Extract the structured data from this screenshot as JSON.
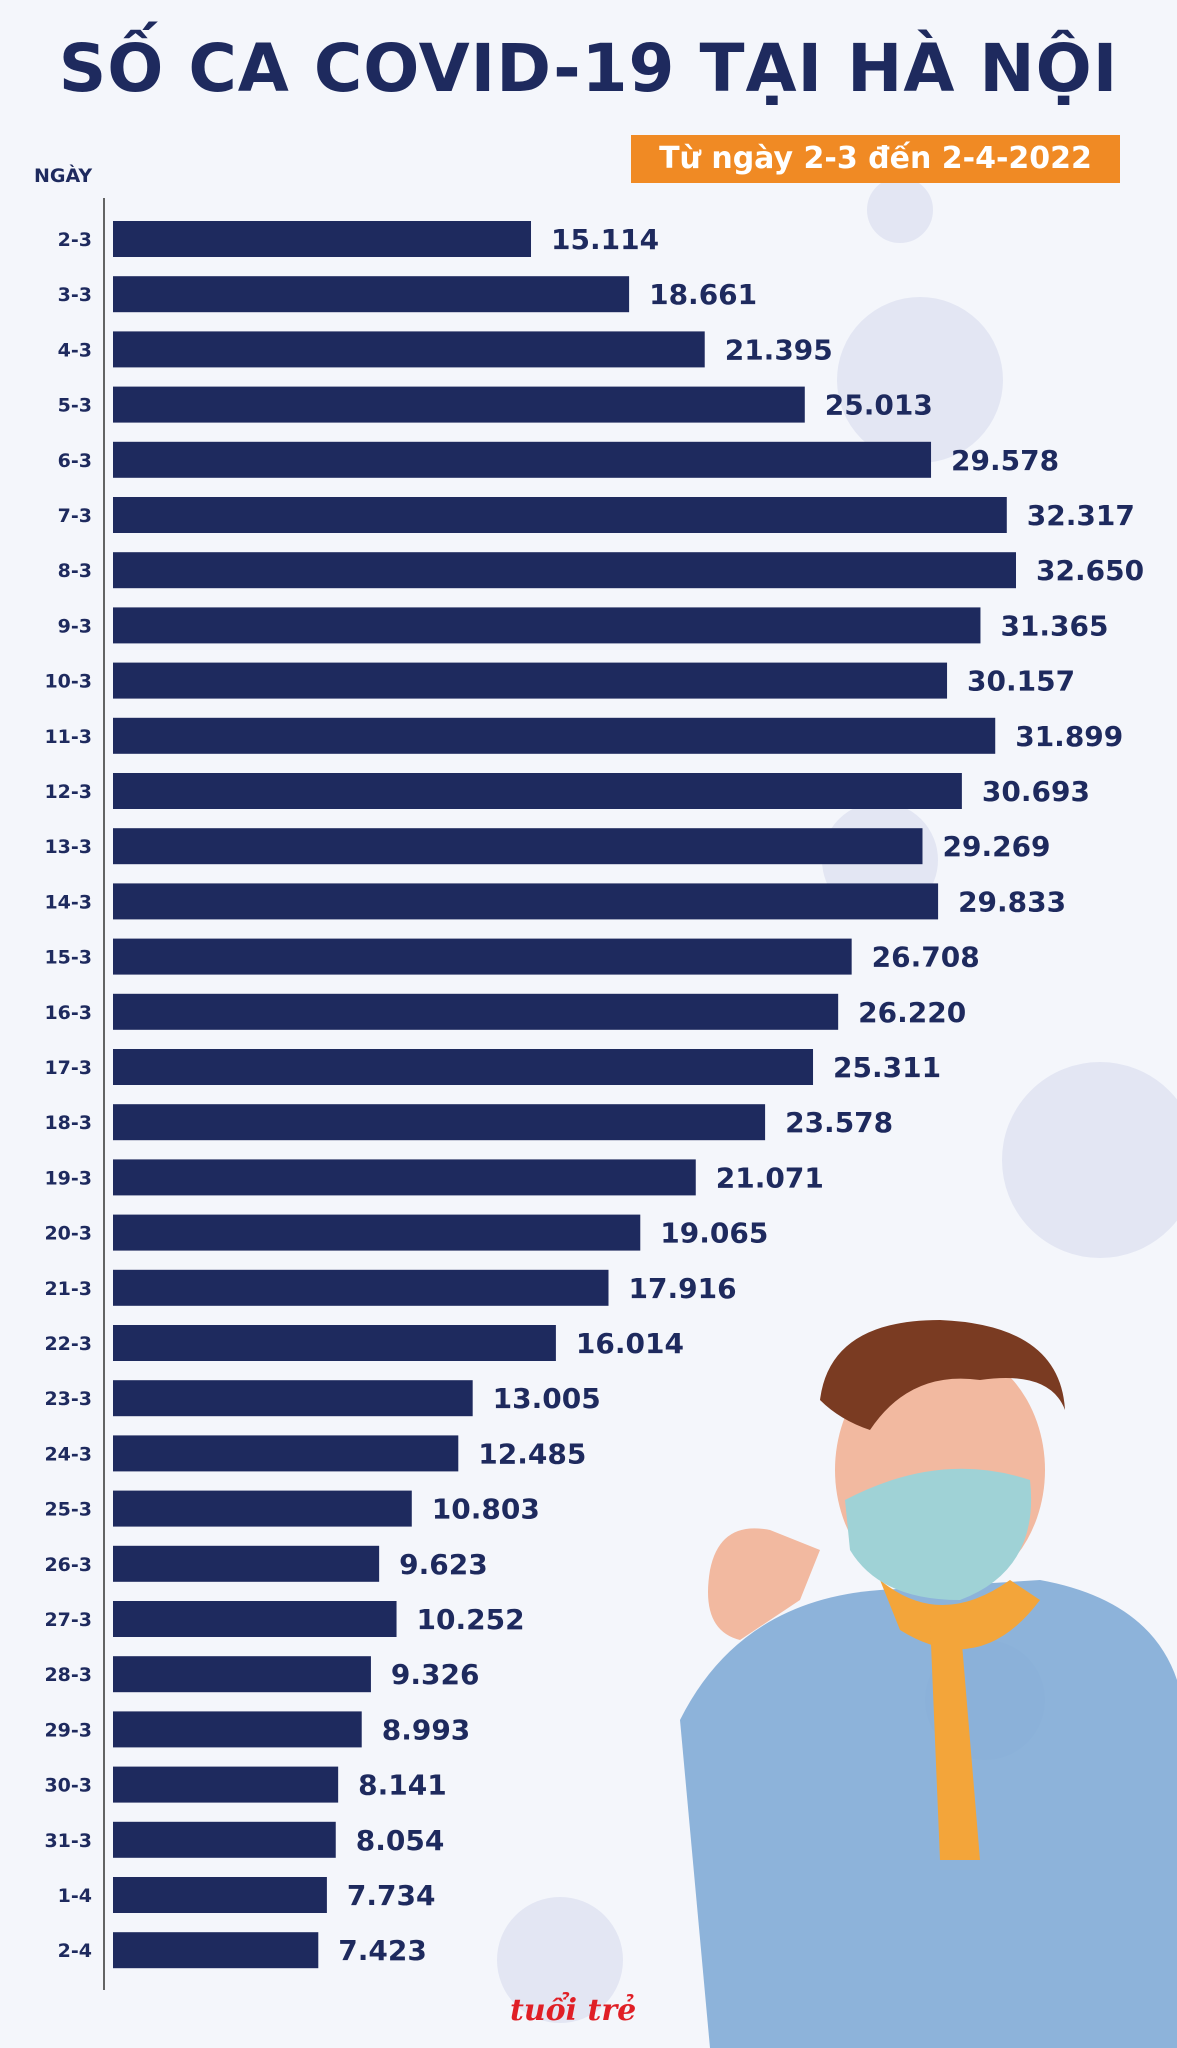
{
  "header": {
    "title": "SỐ CA COVID-19 TẠI HÀ NỘI",
    "subtitle": "Từ ngày 2-3 đến 2-4-2022",
    "axis_label": "NGÀY",
    "logo": "tuổi trẻ"
  },
  "colors": {
    "bar": "#1e2a5e",
    "accent": "#f08a24",
    "logo": "#e01f26"
  },
  "chart_data": {
    "type": "bar",
    "orientation": "horizontal",
    "title": "SỐ CA COVID-19 TẠI HÀ NỘI",
    "subtitle": "Từ ngày 2-3 đến 2-4-2022",
    "ylabel": "NGÀY",
    "categories": [
      "2-3",
      "3-3",
      "4-3",
      "5-3",
      "6-3",
      "7-3",
      "8-3",
      "9-3",
      "10-3",
      "11-3",
      "12-3",
      "13-3",
      "14-3",
      "15-3",
      "16-3",
      "17-3",
      "18-3",
      "19-3",
      "20-3",
      "21-3",
      "22-3",
      "23-3",
      "24-3",
      "25-3",
      "26-3",
      "27-3",
      "28-3",
      "29-3",
      "30-3",
      "31-3",
      "1-4",
      "2-4"
    ],
    "values": [
      15114,
      18661,
      21395,
      25013,
      29578,
      32317,
      32650,
      31365,
      30157,
      31899,
      30693,
      29269,
      29833,
      26708,
      26220,
      25311,
      23578,
      21071,
      19065,
      17916,
      16014,
      13005,
      12485,
      10803,
      9623,
      10252,
      9326,
      8993,
      8141,
      8054,
      7734,
      7423
    ],
    "value_labels": [
      "15.114",
      "18.661",
      "21.395",
      "25.013",
      "29.578",
      "32.317",
      "32.650",
      "31.365",
      "30.157",
      "31.899",
      "30.693",
      "29.269",
      "29.833",
      "26.708",
      "26.220",
      "25.311",
      "23.578",
      "21.071",
      "19.065",
      "17.916",
      "16.014",
      "13.005",
      "12.485",
      "10.803",
      "9.623",
      "10.252",
      "9.326",
      "8.993",
      "8.141",
      "8.054",
      "7.734",
      "7.423"
    ],
    "xlim": [
      0,
      32650
    ],
    "grid": false,
    "legend": "none"
  }
}
